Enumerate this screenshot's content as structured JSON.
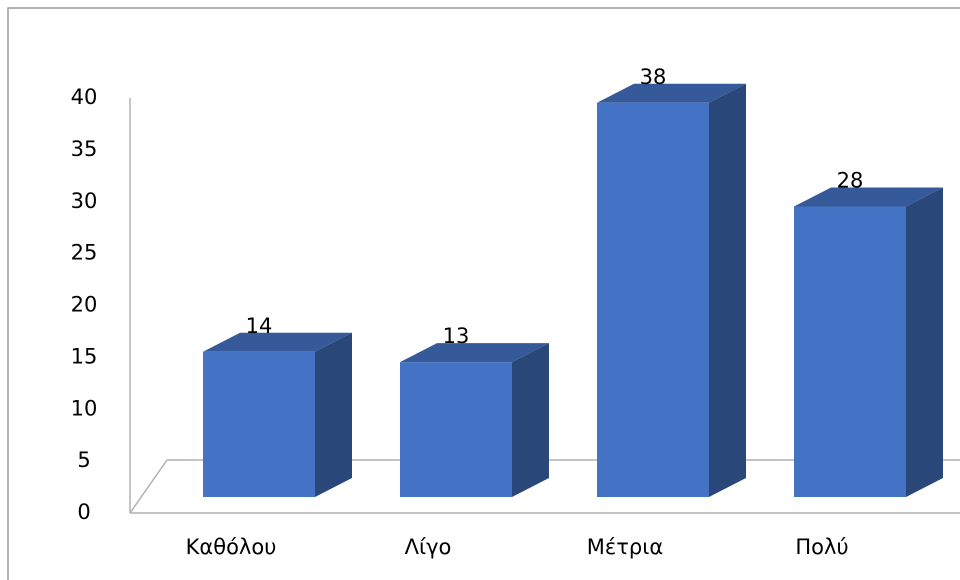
{
  "chart_data": {
    "type": "bar3d",
    "categories": [
      "Καθόλου",
      "Λίγο",
      "Μέτρια",
      "Πολύ"
    ],
    "values": [
      14,
      13,
      38,
      28
    ],
    "color": "#4472c4",
    "ylim": [
      0,
      40
    ],
    "yticks": [
      0,
      5,
      10,
      15,
      20,
      25,
      30,
      35,
      40
    ],
    "grid": false
  }
}
